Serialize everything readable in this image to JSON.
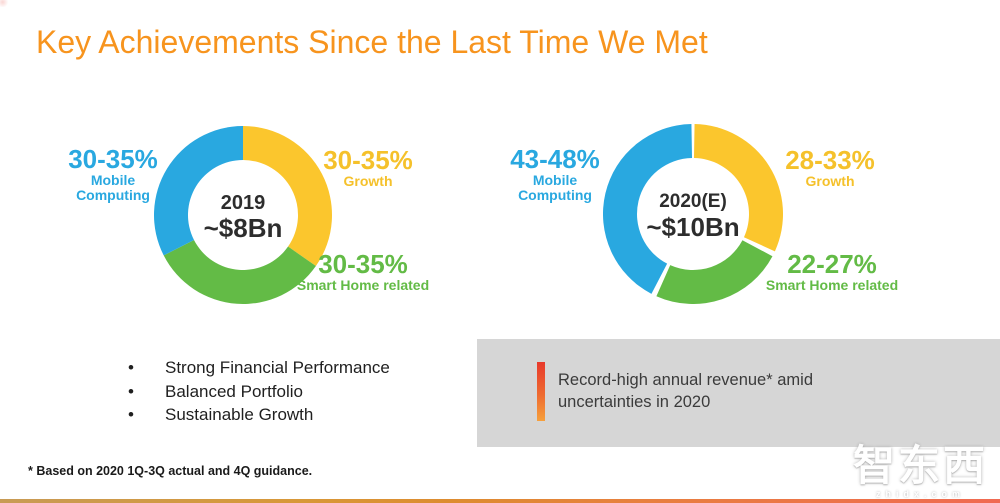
{
  "slide": {
    "title": "Key Achievements Since the Last Time We Met",
    "footnote": "* Based on 2020 1Q-3Q actual and 4Q guidance.",
    "colors": {
      "title_orange": "#F7941E",
      "blue": "#29A8E0",
      "yellow": "#FBC62D",
      "green": "#63BB46",
      "gray_box": "#D6D6D6",
      "accent_bar_top": "#E8392B",
      "accent_bar_bottom": "#F6A03C",
      "bottom_rule_left": "#C89B55",
      "bottom_rule_right": "#F06A52"
    }
  },
  "chart_data": [
    {
      "type": "pie",
      "subtype": "donut",
      "center": {
        "year": "2019",
        "total": "~$8Bn"
      },
      "legend_position": "around",
      "segments": [
        {
          "name": "Growth",
          "range": "30-35%",
          "value_min": 30,
          "value_max": 35,
          "color": "#FBC62D",
          "start_deg": 0,
          "end_deg": 125
        },
        {
          "name": "Smart Home related",
          "range": "30-35%",
          "value_min": 30,
          "value_max": 35,
          "color": "#63BB46",
          "start_deg": 125,
          "end_deg": 243
        },
        {
          "name": "Mobile Computing",
          "range": "30-35%",
          "value_min": 30,
          "value_max": 35,
          "color": "#29A8E0",
          "start_deg": 243,
          "end_deg": 360
        }
      ]
    },
    {
      "type": "pie",
      "subtype": "donut",
      "center": {
        "year": "2020(E)",
        "total": "~$10Bn"
      },
      "legend_position": "around",
      "segments": [
        {
          "name": "Growth",
          "range": "28-33%",
          "value_min": 28,
          "value_max": 33,
          "color": "#FBC62D",
          "start_deg": 1,
          "end_deg": 114.5
        },
        {
          "name": "Smart Home related",
          "range": "22-27%",
          "value_min": 22,
          "value_max": 27,
          "color": "#63BB46",
          "start_deg": 118,
          "end_deg": 204
        },
        {
          "name": "Mobile Computing",
          "range": "43-48%",
          "value_min": 43,
          "value_max": 48,
          "color": "#29A8E0",
          "start_deg": 207.5,
          "end_deg": 359
        }
      ]
    }
  ],
  "bullets": {
    "items": [
      "Strong Financial Performance",
      "Balanced Portfolio",
      "Sustainable Growth"
    ]
  },
  "highlight_box": {
    "text": "Record-high annual revenue* amid uncertainties in 2020"
  },
  "watermark": {
    "cjk": "智东西",
    "latin": "zhidx.com"
  }
}
